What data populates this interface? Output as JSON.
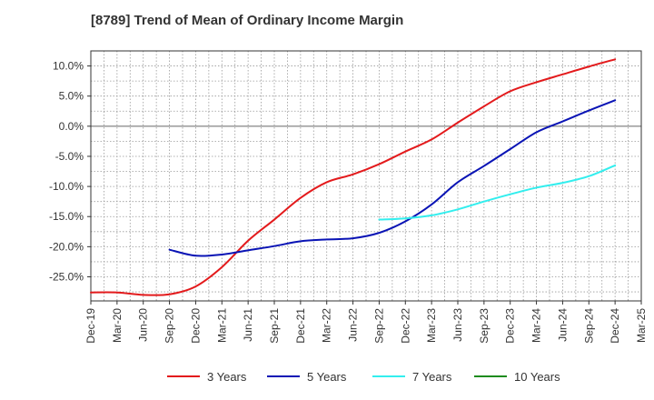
{
  "chart_data": {
    "type": "line",
    "title": "[8789]  Trend of Mean of Ordinary Income Margin",
    "xlabel": "",
    "ylabel": "",
    "x_ticks": [
      "Dec-19",
      "Mar-20",
      "Jun-20",
      "Sep-20",
      "Dec-20",
      "Mar-21",
      "Jun-21",
      "Sep-21",
      "Dec-21",
      "Mar-22",
      "Jun-22",
      "Sep-22",
      "Dec-22",
      "Mar-23",
      "Jun-23",
      "Sep-23",
      "Dec-23",
      "Mar-24",
      "Jun-24",
      "Sep-24",
      "Dec-24",
      "Mar-25"
    ],
    "y_ticks": [
      "10.0%",
      "5.0%",
      "0.0%",
      "-5.0%",
      "-10.0%",
      "-15.0%",
      "-20.0%",
      "-25.0%"
    ],
    "y_tick_values": [
      10,
      5,
      0,
      -5,
      -10,
      -15,
      -20,
      -25
    ],
    "ylim": [
      -29,
      12.5
    ],
    "grid": true,
    "legend_position": "bottom",
    "series": [
      {
        "name": "3 Years",
        "color": "#e31a1c",
        "x": [
          "Dec-19",
          "Mar-20",
          "Jun-20",
          "Sep-20",
          "Dec-20",
          "Mar-21",
          "Jun-21",
          "Sep-21",
          "Dec-21",
          "Mar-22",
          "Jun-22",
          "Sep-22",
          "Dec-22",
          "Mar-23",
          "Jun-23",
          "Sep-23",
          "Dec-23",
          "Mar-24",
          "Jun-24",
          "Sep-24",
          "Dec-24"
        ],
        "values": [
          -27.6,
          -27.6,
          -28.0,
          -27.9,
          -26.6,
          -23.4,
          -19.0,
          -15.5,
          -11.9,
          -9.3,
          -8.0,
          -6.3,
          -4.2,
          -2.2,
          0.6,
          3.3,
          5.8,
          7.3,
          8.6,
          9.9,
          11.1
        ]
      },
      {
        "name": "5 Years",
        "color": "#0a14b5",
        "x": [
          "Sep-20",
          "Dec-20",
          "Mar-21",
          "Jun-21",
          "Sep-21",
          "Dec-21",
          "Mar-22",
          "Jun-22",
          "Sep-22",
          "Dec-22",
          "Mar-23",
          "Jun-23",
          "Sep-23",
          "Dec-23",
          "Mar-24",
          "Jun-24",
          "Sep-24",
          "Dec-24"
        ],
        "values": [
          -20.5,
          -21.5,
          -21.3,
          -20.6,
          -19.9,
          -19.1,
          -18.8,
          -18.6,
          -17.7,
          -15.8,
          -13.0,
          -9.3,
          -6.6,
          -3.8,
          -1.0,
          0.8,
          2.6,
          4.3
        ]
      },
      {
        "name": "7 Years",
        "color": "#33eeee",
        "x": [
          "Sep-22",
          "Dec-22",
          "Mar-23",
          "Jun-23",
          "Sep-23",
          "Dec-23",
          "Mar-24",
          "Jun-24",
          "Sep-24",
          "Dec-24"
        ],
        "values": [
          -15.5,
          -15.3,
          -14.8,
          -13.8,
          -12.5,
          -11.3,
          -10.2,
          -9.4,
          -8.3,
          -6.5
        ]
      },
      {
        "name": "10 Years",
        "color": "#1e8c1e",
        "x": [],
        "values": []
      }
    ]
  }
}
